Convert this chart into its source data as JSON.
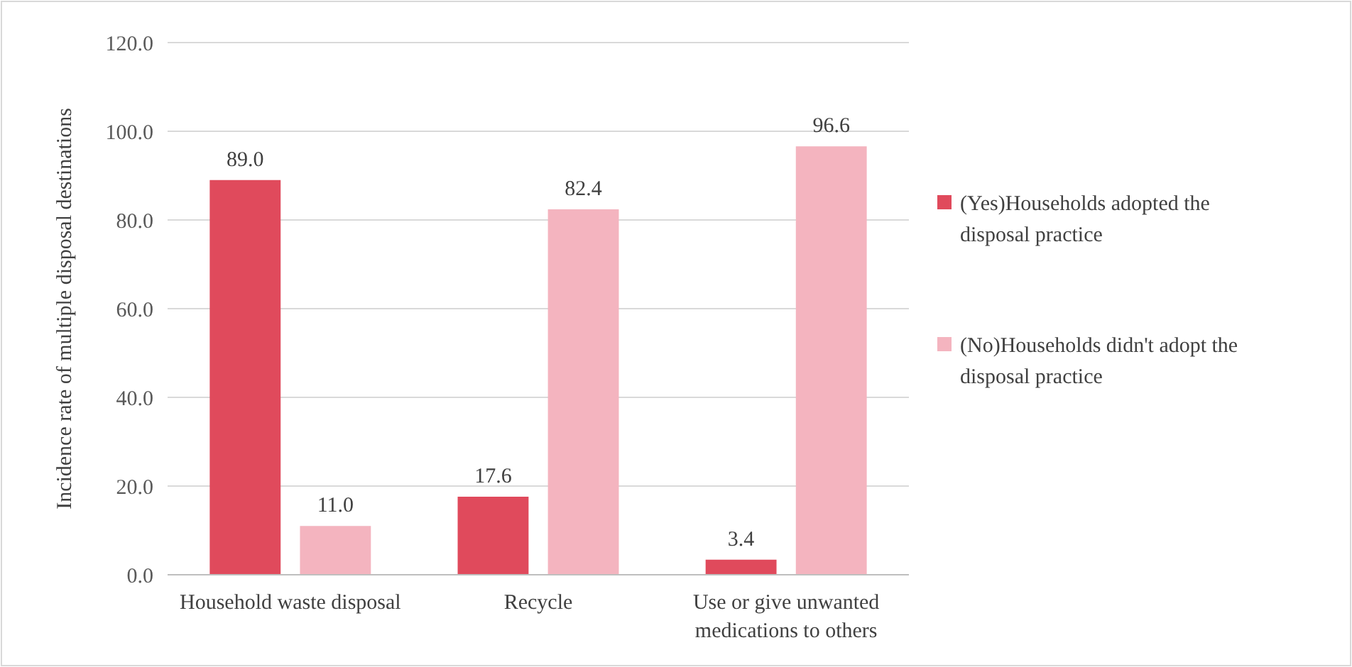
{
  "chart_data": {
    "type": "bar",
    "ylabel": "Incidence rate of multiple disposal destinations",
    "categories": [
      "Household waste disposal",
      "Recycle",
      "Use or give unwanted medications to others"
    ],
    "series": [
      {
        "name": "(Yes)Households adopted the disposal practice",
        "color": "#e04a5c",
        "values": [
          89.0,
          17.6,
          3.4
        ],
        "value_labels": [
          "89.0",
          "17.6",
          "3.4"
        ]
      },
      {
        "name": "(No)Households didn't adopt the disposal practice",
        "color": "#f4b4bf",
        "values": [
          11.0,
          82.4,
          96.6
        ],
        "value_labels": [
          "11.0",
          "82.4",
          "96.6"
        ]
      }
    ],
    "ylim": [
      0,
      120
    ],
    "yticks": [
      {
        "value": 0,
        "label": "0.0"
      },
      {
        "value": 20,
        "label": "20.0"
      },
      {
        "value": 40,
        "label": "40.0"
      },
      {
        "value": 60,
        "label": "60.0"
      },
      {
        "value": 80,
        "label": "80.0"
      },
      {
        "value": 100,
        "label": "100.0"
      },
      {
        "value": 120,
        "label": "120.0"
      }
    ],
    "grid": "y",
    "legend": "right"
  }
}
